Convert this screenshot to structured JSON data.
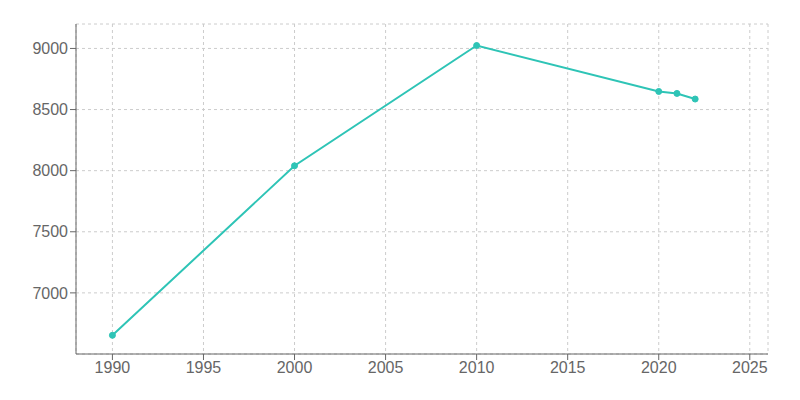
{
  "chart_data": {
    "type": "line",
    "x": [
      1990,
      2000,
      2010,
      2020,
      2021,
      2022
    ],
    "values": [
      6653,
      8040,
      9024,
      8648,
      8632,
      8586
    ],
    "color": "#2ec4b6",
    "marker": "circle",
    "xlim": [
      1988,
      2026
    ],
    "ylim": [
      6500,
      9200
    ],
    "xticks": [
      1990,
      1995,
      2000,
      2005,
      2010,
      2015,
      2020,
      2025
    ],
    "yticks": [
      7000,
      7500,
      8000,
      8500,
      9000
    ],
    "grid": true
  }
}
